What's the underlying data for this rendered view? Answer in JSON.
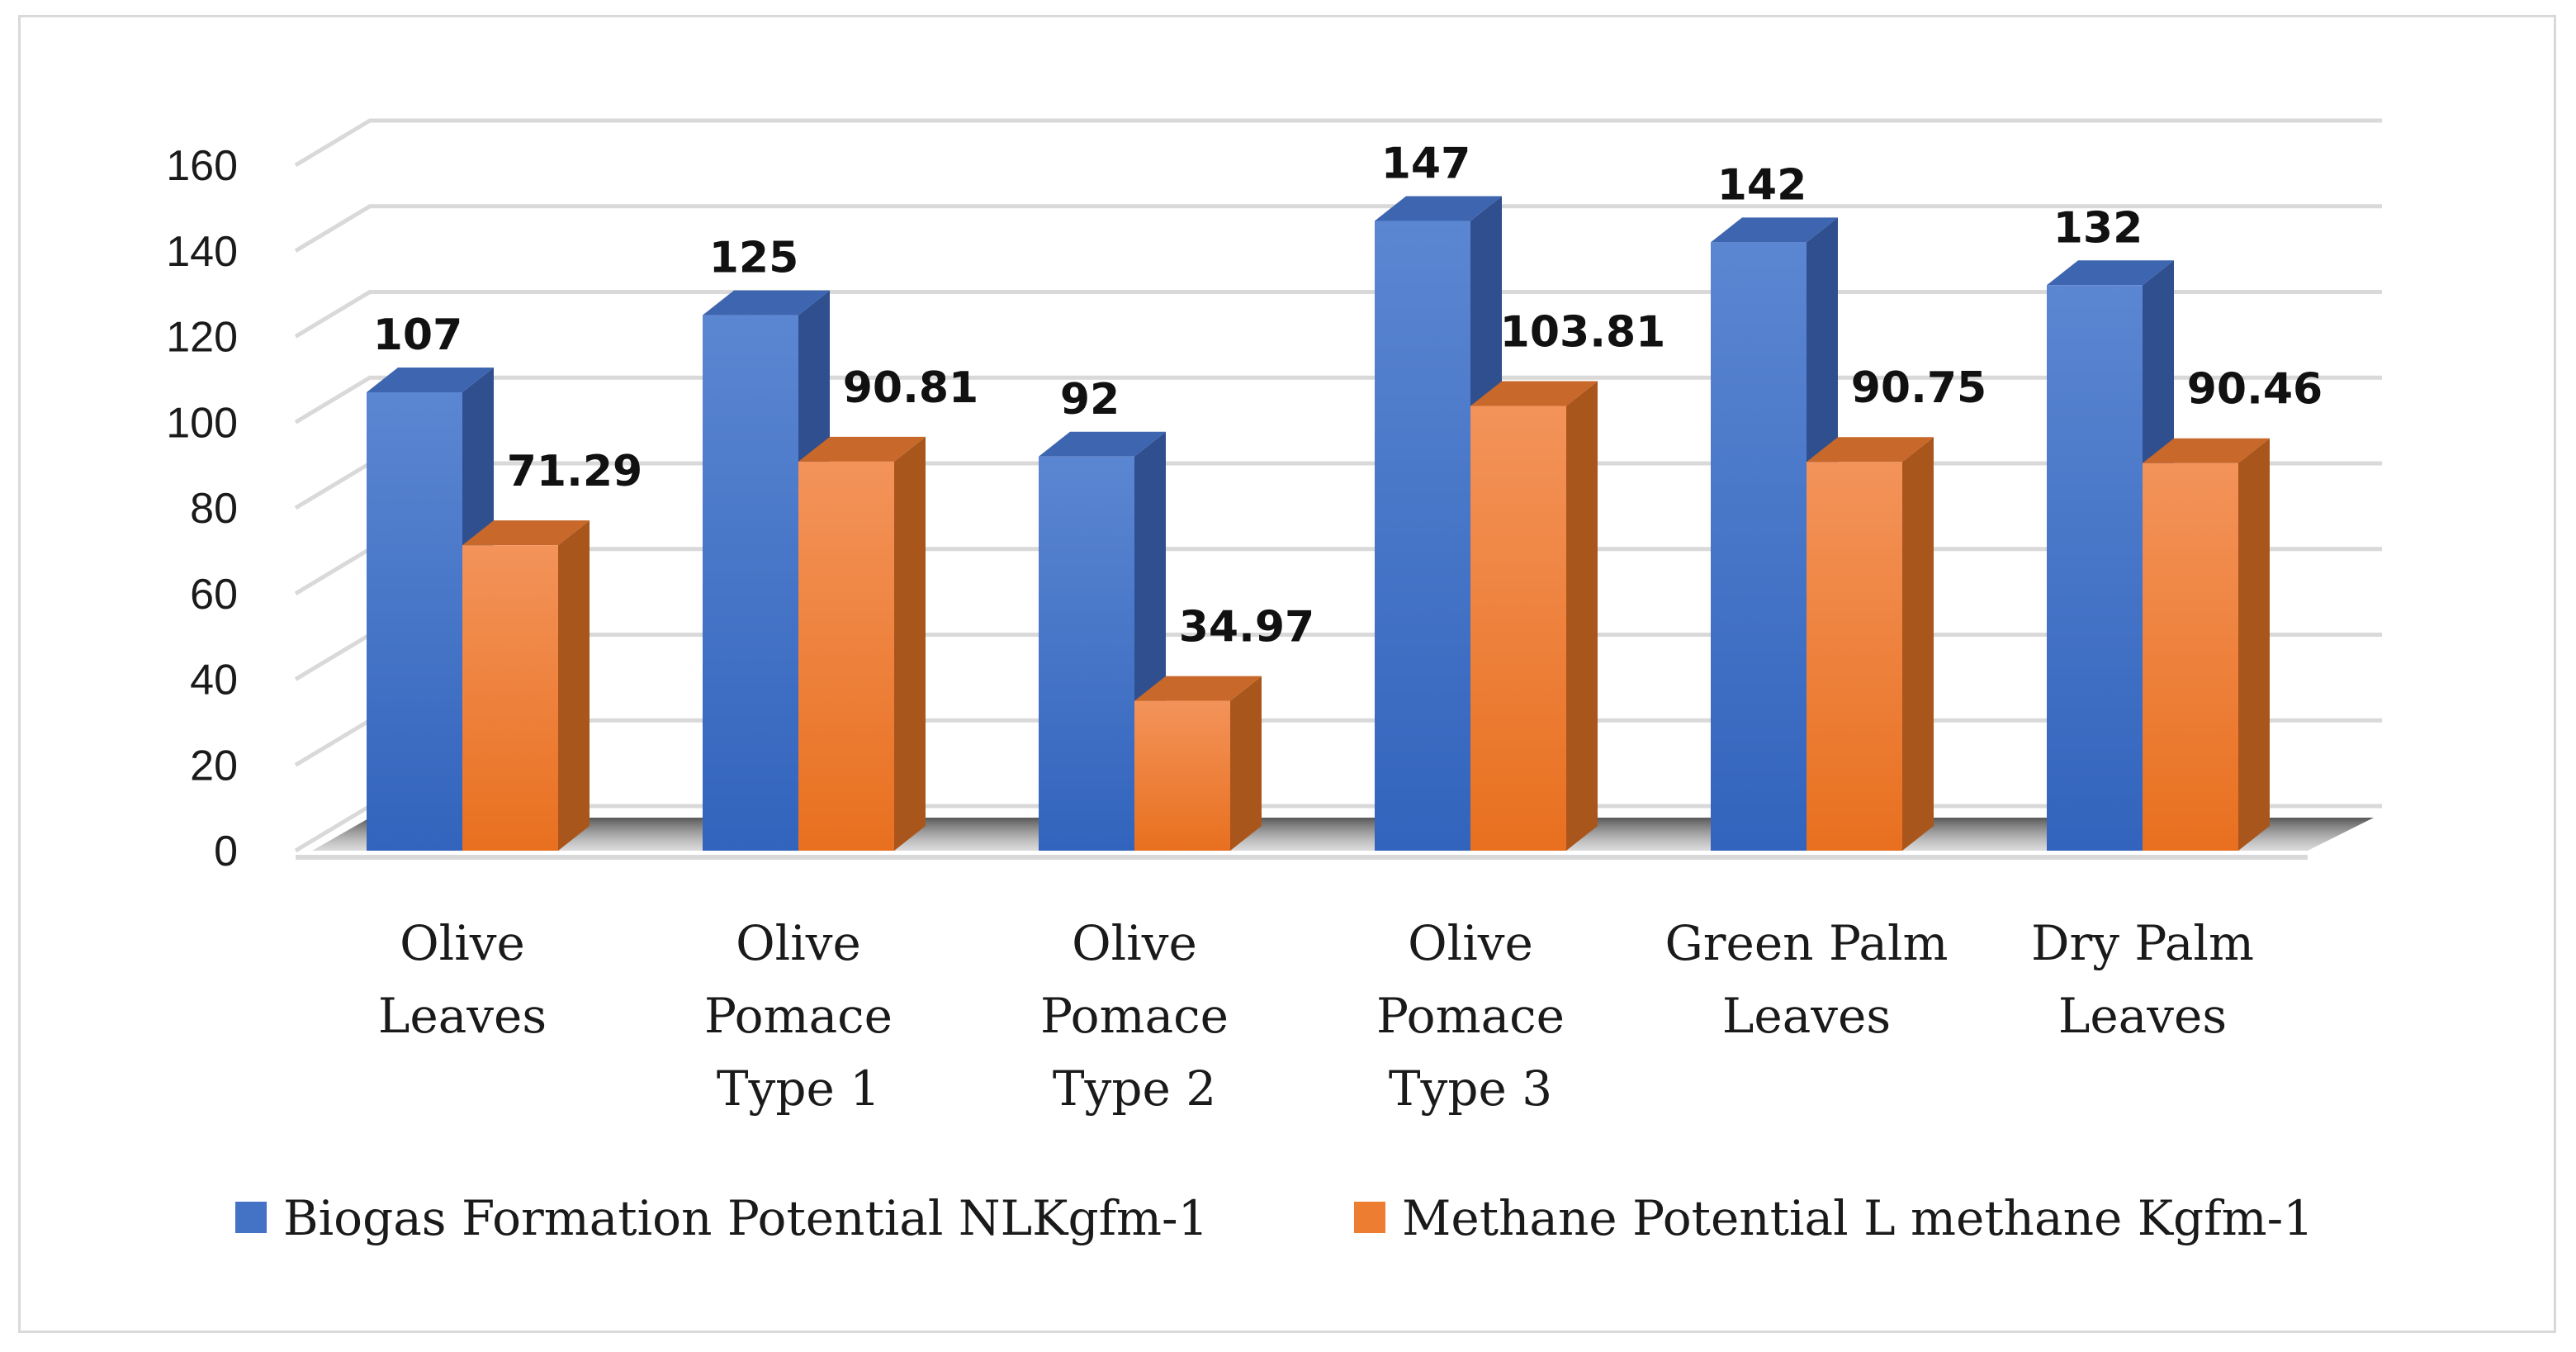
{
  "chart_data": {
    "type": "bar",
    "style": "3d-clustered-column",
    "title": "",
    "xlabel": "",
    "ylabel": "",
    "ylim": [
      0,
      160
    ],
    "yticks": [
      0,
      20,
      40,
      60,
      80,
      100,
      120,
      140,
      160
    ],
    "grid": true,
    "legend_position": "bottom",
    "categories": [
      [
        "Olive",
        "Leaves"
      ],
      [
        "Olive",
        "Pomace",
        "Type 1"
      ],
      [
        "Olive",
        "Pomace",
        "Type 2"
      ],
      [
        "Olive",
        "Pomace",
        "Type 3"
      ],
      [
        "Green Palm",
        "Leaves"
      ],
      [
        "Dry Palm",
        "Leaves"
      ]
    ],
    "series": [
      {
        "name": "Biogas Formation Potential NLKgfm-1",
        "color": "#4472c4",
        "values": [
          107,
          125,
          92,
          147,
          142,
          132
        ],
        "labels": [
          "107",
          "125",
          "92",
          "147",
          "142",
          "132"
        ]
      },
      {
        "name": "Methane Potential L methane Kgfm-1",
        "color": "#ed7d31",
        "values": [
          71.29,
          90.81,
          34.97,
          103.81,
          90.75,
          90.46
        ],
        "labels": [
          "71.29",
          "90.81",
          "34.97",
          "103.81",
          "90.75",
          "90.46"
        ]
      }
    ]
  }
}
